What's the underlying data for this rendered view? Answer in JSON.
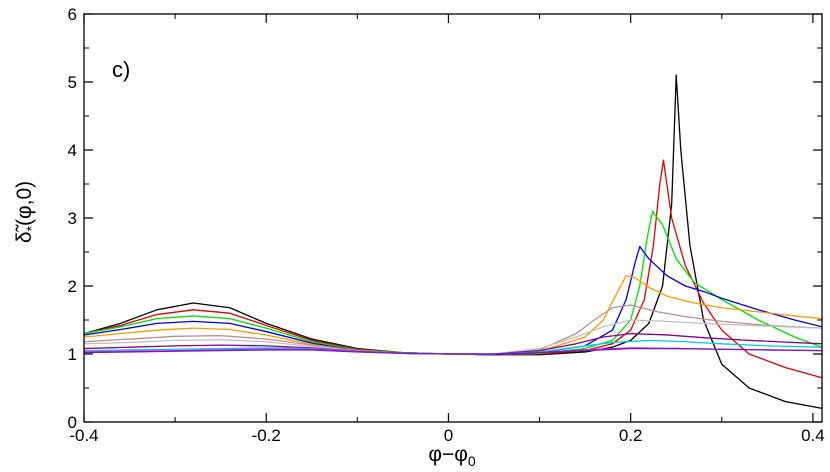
{
  "chart_data": {
    "type": "line",
    "panel_label": "c)",
    "xlabel": "φ−φ",
    "xlabel_sub": "0",
    "ylabel": "δ̃",
    "ylabel_sub": "*",
    "ylabel_args": "(φ,0)",
    "xlim": [
      -0.4,
      0.41
    ],
    "ylim": [
      0,
      6
    ],
    "xticks": [
      -0.4,
      -0.2,
      0,
      0.2,
      0.4
    ],
    "xtick_labels": [
      "-0.4",
      "-0.2",
      "0",
      "0.2",
      "0.4"
    ],
    "yticks": [
      0,
      1,
      2,
      3,
      4,
      5,
      6
    ],
    "ytick_labels": [
      "0",
      "1",
      "2",
      "3",
      "4",
      "5",
      "6"
    ],
    "grid": false,
    "series": [
      {
        "color": "#000000",
        "x": [
          -0.4,
          -0.36,
          -0.32,
          -0.28,
          -0.24,
          -0.2,
          -0.15,
          -0.1,
          -0.05,
          0,
          0.05,
          0.1,
          0.15,
          0.18,
          0.2,
          0.22,
          0.235,
          0.245,
          0.25,
          0.255,
          0.265,
          0.28,
          0.3,
          0.33,
          0.37,
          0.41
        ],
        "y": [
          1.3,
          1.45,
          1.65,
          1.75,
          1.68,
          1.45,
          1.22,
          1.08,
          1.02,
          1.0,
          0.99,
          0.99,
          1.03,
          1.1,
          1.2,
          1.45,
          2.0,
          3.2,
          5.1,
          4.0,
          2.6,
          1.5,
          0.85,
          0.5,
          0.3,
          0.2
        ]
      },
      {
        "color": "#e00000",
        "x": [
          -0.4,
          -0.36,
          -0.32,
          -0.28,
          -0.24,
          -0.2,
          -0.15,
          -0.1,
          -0.05,
          0,
          0.05,
          0.1,
          0.15,
          0.18,
          0.2,
          0.215,
          0.225,
          0.232,
          0.236,
          0.245,
          0.26,
          0.28,
          0.3,
          0.33,
          0.37,
          0.41
        ],
        "y": [
          1.3,
          1.42,
          1.58,
          1.65,
          1.6,
          1.42,
          1.2,
          1.07,
          1.02,
          1.0,
          0.99,
          1.0,
          1.05,
          1.15,
          1.35,
          1.8,
          2.6,
          3.5,
          3.85,
          3.0,
          2.3,
          1.75,
          1.35,
          1.0,
          0.8,
          0.65
        ]
      },
      {
        "color": "#00e000",
        "x": [
          -0.4,
          -0.36,
          -0.32,
          -0.28,
          -0.24,
          -0.2,
          -0.15,
          -0.1,
          -0.05,
          0,
          0.05,
          0.1,
          0.15,
          0.18,
          0.2,
          0.21,
          0.218,
          0.224,
          0.235,
          0.25,
          0.27,
          0.3,
          0.34,
          0.38,
          0.41
        ],
        "y": [
          1.3,
          1.4,
          1.52,
          1.56,
          1.52,
          1.38,
          1.18,
          1.06,
          1.02,
          1.0,
          0.99,
          1.01,
          1.08,
          1.2,
          1.5,
          2.0,
          2.7,
          3.1,
          2.9,
          2.4,
          2.05,
          1.8,
          1.5,
          1.25,
          1.1
        ]
      },
      {
        "color": "#0000e0",
        "x": [
          -0.4,
          -0.36,
          -0.32,
          -0.28,
          -0.24,
          -0.2,
          -0.15,
          -0.1,
          -0.05,
          0,
          0.05,
          0.1,
          0.15,
          0.18,
          0.195,
          0.205,
          0.21,
          0.22,
          0.24,
          0.26,
          0.28,
          0.3,
          0.34,
          0.38,
          0.41
        ],
        "y": [
          1.28,
          1.36,
          1.45,
          1.48,
          1.45,
          1.33,
          1.16,
          1.05,
          1.01,
          1.0,
          0.99,
          1.02,
          1.12,
          1.35,
          1.8,
          2.35,
          2.58,
          2.4,
          2.15,
          2.0,
          1.92,
          1.82,
          1.65,
          1.5,
          1.4
        ]
      },
      {
        "color": "#ff9900",
        "x": [
          -0.4,
          -0.36,
          -0.32,
          -0.28,
          -0.24,
          -0.2,
          -0.15,
          -0.1,
          -0.05,
          0,
          0.05,
          0.1,
          0.15,
          0.17,
          0.185,
          0.195,
          0.205,
          0.22,
          0.24,
          0.27,
          0.3,
          0.34,
          0.38,
          0.41
        ],
        "y": [
          1.25,
          1.3,
          1.35,
          1.38,
          1.36,
          1.28,
          1.14,
          1.05,
          1.01,
          1.0,
          1.0,
          1.04,
          1.25,
          1.5,
          1.9,
          2.15,
          2.12,
          1.98,
          1.85,
          1.75,
          1.68,
          1.62,
          1.56,
          1.52
        ]
      },
      {
        "color": "#bc8f8f",
        "x": [
          -0.4,
          -0.35,
          -0.3,
          -0.25,
          -0.2,
          -0.15,
          -0.1,
          -0.05,
          0,
          0.05,
          0.1,
          0.14,
          0.16,
          0.18,
          0.2,
          0.23,
          0.26,
          0.3,
          0.35,
          0.41
        ],
        "y": [
          1.18,
          1.22,
          1.26,
          1.27,
          1.22,
          1.13,
          1.05,
          1.01,
          1.0,
          1.0,
          1.06,
          1.3,
          1.5,
          1.68,
          1.72,
          1.62,
          1.55,
          1.48,
          1.42,
          1.38
        ]
      },
      {
        "color": "#c0c0c0",
        "x": [
          -0.4,
          -0.35,
          -0.3,
          -0.25,
          -0.2,
          -0.15,
          -0.1,
          -0.05,
          0,
          0.05,
          0.1,
          0.14,
          0.17,
          0.2,
          0.24,
          0.28,
          0.33,
          0.41
        ],
        "y": [
          1.15,
          1.17,
          1.2,
          1.21,
          1.18,
          1.11,
          1.04,
          1.01,
          1.0,
          1.0,
          1.08,
          1.25,
          1.4,
          1.5,
          1.48,
          1.45,
          1.42,
          1.38
        ]
      },
      {
        "color": "#8b008b",
        "x": [
          -0.4,
          -0.35,
          -0.3,
          -0.25,
          -0.2,
          -0.15,
          -0.1,
          -0.05,
          0,
          0.05,
          0.1,
          0.14,
          0.17,
          0.2,
          0.24,
          0.28,
          0.33,
          0.41
        ],
        "y": [
          1.08,
          1.1,
          1.12,
          1.13,
          1.12,
          1.09,
          1.04,
          1.01,
          1.0,
          1.0,
          1.05,
          1.15,
          1.25,
          1.3,
          1.28,
          1.24,
          1.2,
          1.15
        ]
      },
      {
        "color": "#00d0d0",
        "x": [
          -0.4,
          -0.35,
          -0.3,
          -0.25,
          -0.2,
          -0.15,
          -0.1,
          -0.05,
          0,
          0.05,
          0.1,
          0.14,
          0.18,
          0.22,
          0.26,
          0.3,
          0.35,
          0.41
        ],
        "y": [
          1.05,
          1.06,
          1.07,
          1.08,
          1.09,
          1.08,
          1.04,
          1.01,
          1.0,
          1.0,
          1.03,
          1.1,
          1.17,
          1.2,
          1.18,
          1.15,
          1.12,
          1.1
        ]
      },
      {
        "color": "#ff00ff",
        "x": [
          -0.4,
          -0.35,
          -0.3,
          -0.25,
          -0.2,
          -0.15,
          -0.1,
          -0.05,
          0,
          0.05,
          0.1,
          0.15,
          0.2,
          0.25,
          0.3,
          0.35,
          0.41
        ],
        "y": [
          1.03,
          1.04,
          1.05,
          1.06,
          1.07,
          1.07,
          1.04,
          1.01,
          1.0,
          1.0,
          1.02,
          1.06,
          1.09,
          1.08,
          1.07,
          1.06,
          1.05
        ]
      },
      {
        "color": "#7020c0",
        "x": [
          -0.4,
          -0.35,
          -0.3,
          -0.25,
          -0.2,
          -0.15,
          -0.1,
          -0.05,
          0,
          0.05,
          0.1,
          0.15,
          0.2,
          0.25,
          0.3,
          0.35,
          0.41
        ],
        "y": [
          1.02,
          1.03,
          1.04,
          1.05,
          1.06,
          1.06,
          1.03,
          1.01,
          1.0,
          1.0,
          1.02,
          1.05,
          1.08,
          1.08,
          1.07,
          1.06,
          1.05
        ]
      }
    ]
  }
}
